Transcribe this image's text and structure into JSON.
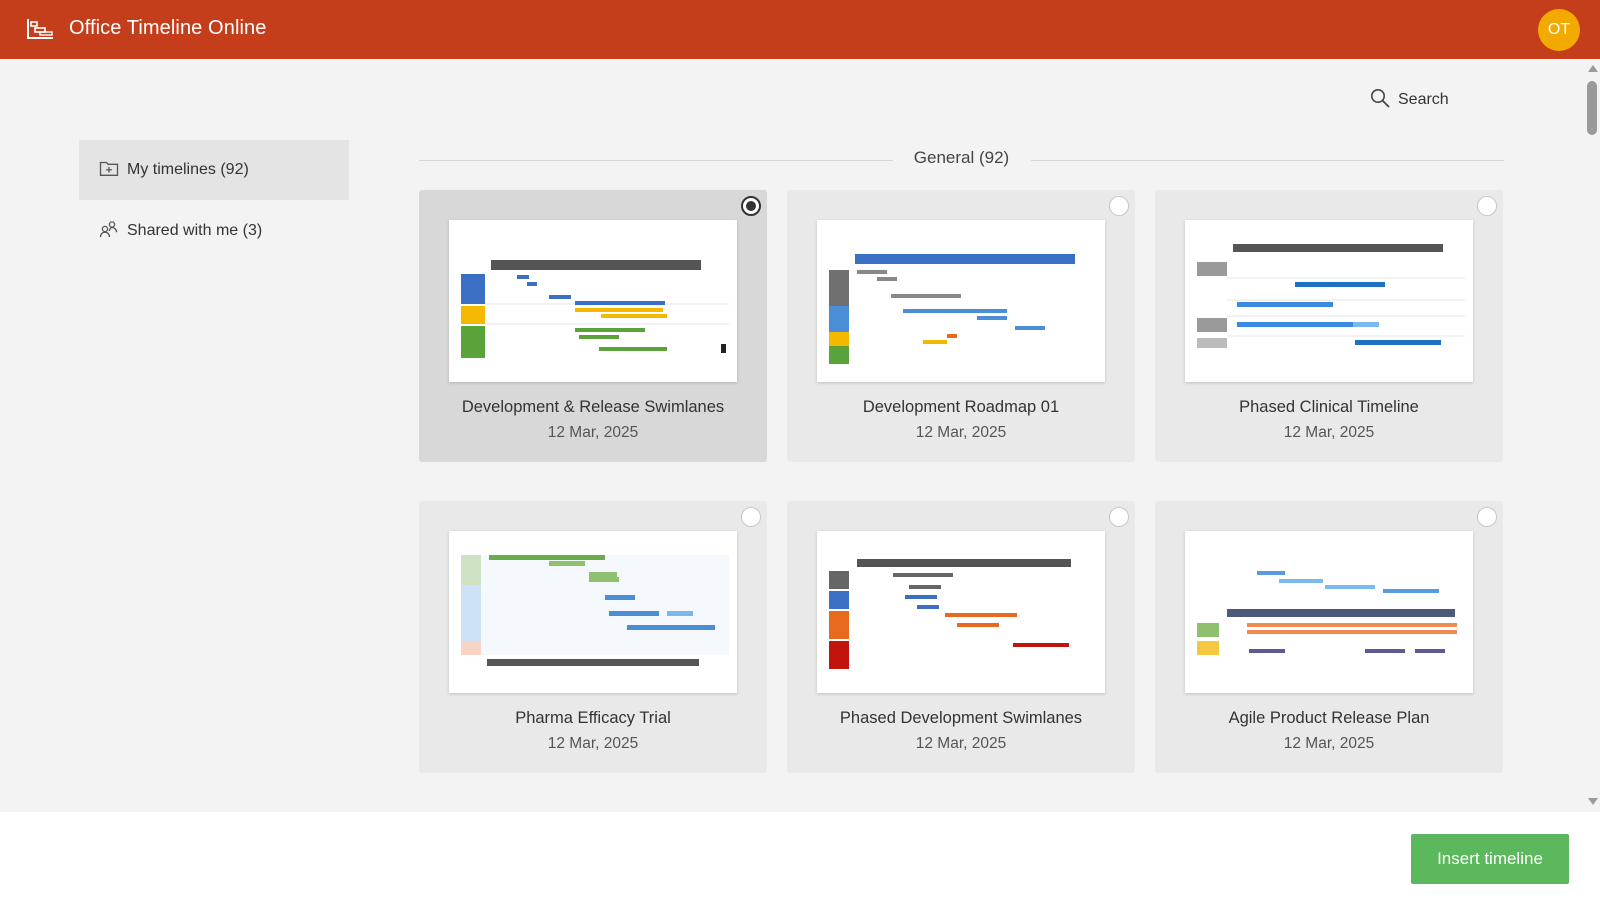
{
  "app": {
    "title": "Office Timeline Online",
    "avatar_initials": "OT",
    "brand_color": "#c43e1c",
    "avatar_color": "#f2a900"
  },
  "search": {
    "label": "Search",
    "icon": "search-icon"
  },
  "sidebar": {
    "items": [
      {
        "label": "My timelines (92)",
        "icon": "folder-add-icon",
        "active": true
      },
      {
        "label": "Shared with me (3)",
        "icon": "shared-users-icon",
        "active": false
      }
    ]
  },
  "section": {
    "title": "General (92)"
  },
  "templates": [
    {
      "title": "Development & Release Swimlanes",
      "date": "12 Mar, 2025",
      "selected": true
    },
    {
      "title": "Development Roadmap 01",
      "date": "12 Mar, 2025",
      "selected": false
    },
    {
      "title": "Phased Clinical Timeline",
      "date": "12 Mar, 2025",
      "selected": false
    },
    {
      "title": "Pharma Efficacy Trial",
      "date": "12 Mar, 2025",
      "selected": false
    },
    {
      "title": "Phased Development Swimlanes",
      "date": "12 Mar, 2025",
      "selected": false
    },
    {
      "title": "Agile Product Release Plan",
      "date": "12 Mar, 2025",
      "selected": false
    }
  ],
  "footer": {
    "insert_label": "Insert timeline",
    "button_color": "#5cb85c"
  }
}
